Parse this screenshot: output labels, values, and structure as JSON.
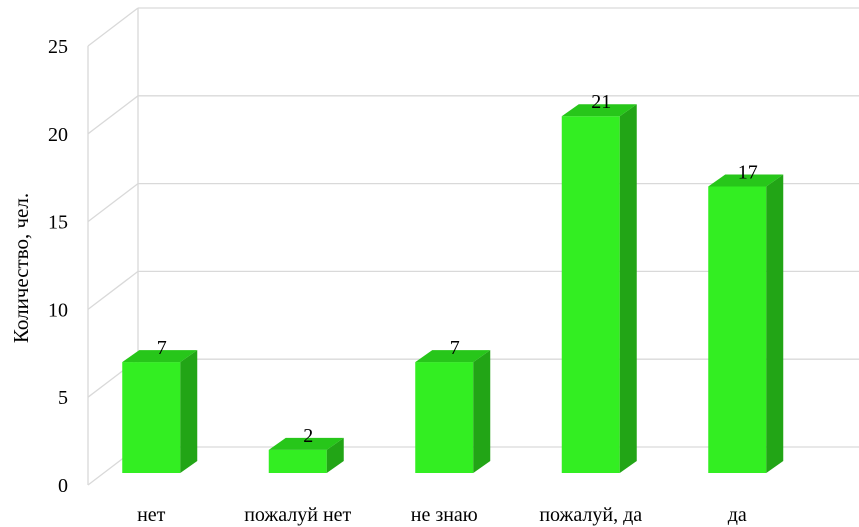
{
  "chart_data": {
    "type": "bar",
    "title": "",
    "xlabel": "",
    "ylabel": "Количество, чел.",
    "categories": [
      "нет",
      "пожалуй нет",
      "не знаю",
      "пожалуй, да",
      "да"
    ],
    "values": [
      7,
      2,
      7,
      21,
      17
    ],
    "data_labels": [
      "7",
      "2",
      "7",
      "21",
      "17"
    ],
    "ylim": [
      0,
      25
    ],
    "yticks": [
      0,
      5,
      10,
      15,
      20,
      25
    ],
    "ytick_labels": [
      "0",
      "5",
      "10",
      "15",
      "20",
      "25"
    ],
    "grid": true,
    "legend": "none",
    "style": "3d-column",
    "colors": {
      "bar_front": "#33ee22",
      "bar_side": "#22a516",
      "bar_top": "#27c61a",
      "grid": "#d9d9d9"
    }
  }
}
